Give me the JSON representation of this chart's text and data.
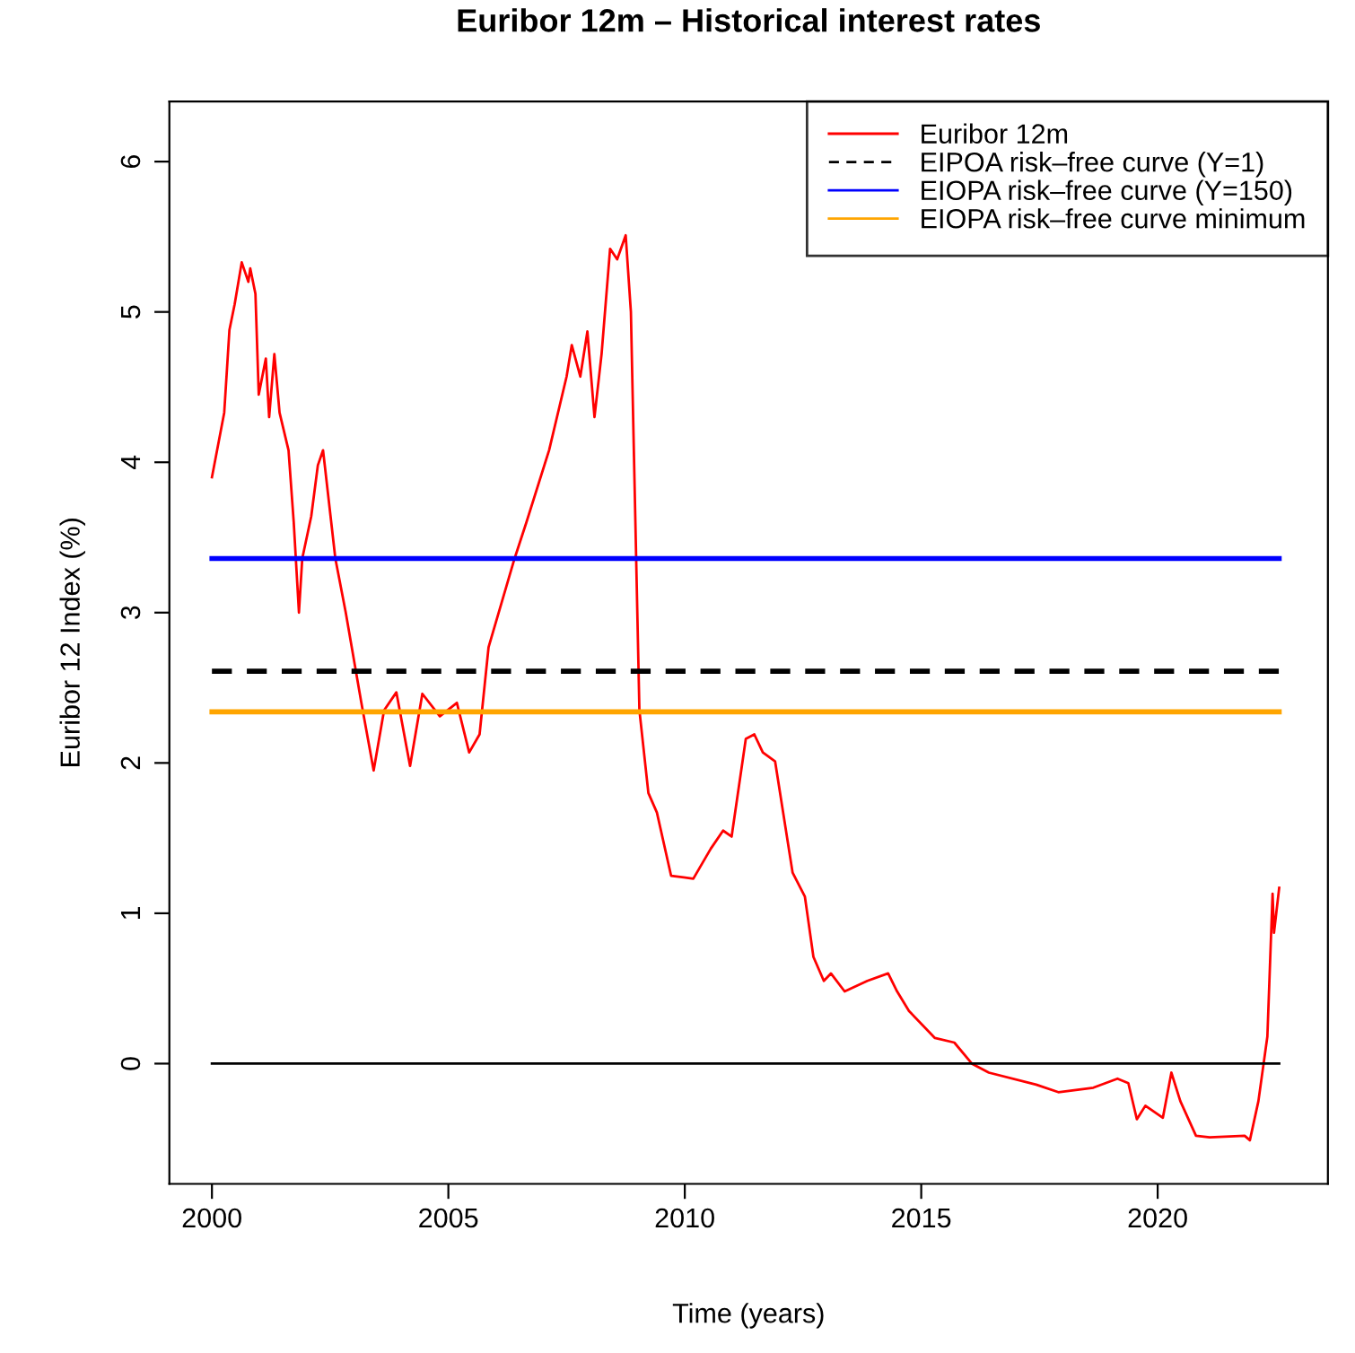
{
  "chart_data": {
    "type": "line",
    "title": "Euribor 12m – Historical interest rates",
    "xlabel": "Time (years)",
    "ylabel": "Euribor 12 Index (%)",
    "xlim": [
      1999.1,
      2023.6
    ],
    "xticks": [
      2000,
      2005,
      2010,
      2015,
      2020
    ],
    "ylim": [
      -0.8,
      6.4
    ],
    "yticks": [
      0,
      1,
      2,
      3,
      4,
      5,
      6
    ],
    "grid": false,
    "legend": "top right",
    "series": [
      {
        "name": "Euribor 12m",
        "color": "#ff0000",
        "line_style": "solid",
        "x": [
          2000.0,
          2000.26,
          2000.37,
          2000.48,
          2000.63,
          2000.77,
          2000.81,
          2000.92,
          2000.99,
          2001.14,
          2001.21,
          2001.32,
          2001.43,
          2001.62,
          2001.73,
          2001.84,
          2001.91,
          2002.1,
          2002.24,
          2002.35,
          2002.61,
          2002.83,
          2003.16,
          2003.42,
          2003.64,
          2003.9,
          2004.19,
          2004.45,
          2004.82,
          2005.18,
          2005.44,
          2005.66,
          2005.85,
          2006.4,
          2006.65,
          2007.13,
          2007.5,
          2007.61,
          2007.79,
          2007.94,
          2008.09,
          2008.24,
          2008.42,
          2008.57,
          2008.75,
          2008.86,
          2009.04,
          2009.23,
          2009.41,
          2009.71,
          2010.18,
          2010.55,
          2010.81,
          2010.99,
          2011.29,
          2011.47,
          2011.65,
          2011.91,
          2012.28,
          2012.54,
          2012.72,
          2012.94,
          2013.09,
          2013.38,
          2013.86,
          2014.3,
          2014.49,
          2014.74,
          2015.29,
          2015.7,
          2016.07,
          2016.43,
          2017.43,
          2017.9,
          2018.64,
          2019.15,
          2019.38,
          2019.56,
          2019.74,
          2020.11,
          2020.29,
          2020.48,
          2020.81,
          2021.1,
          2021.84,
          2021.95,
          2022.13,
          2022.32,
          2022.43,
          2022.46,
          2022.57
        ],
        "values": [
          3.9,
          4.33,
          4.88,
          5.05,
          5.33,
          5.2,
          5.29,
          5.12,
          4.45,
          4.69,
          4.3,
          4.72,
          4.33,
          4.08,
          3.6,
          3.0,
          3.36,
          3.64,
          3.98,
          4.08,
          3.36,
          3.0,
          2.4,
          1.95,
          2.35,
          2.47,
          1.98,
          2.46,
          2.31,
          2.4,
          2.07,
          2.19,
          2.77,
          3.36,
          3.6,
          4.08,
          4.57,
          4.78,
          4.57,
          4.87,
          4.3,
          4.72,
          5.42,
          5.35,
          5.51,
          5.0,
          2.35,
          1.8,
          1.67,
          1.25,
          1.23,
          1.43,
          1.55,
          1.51,
          2.16,
          2.19,
          2.07,
          2.01,
          1.27,
          1.11,
          0.71,
          0.55,
          0.6,
          0.48,
          0.55,
          0.6,
          0.48,
          0.35,
          0.17,
          0.14,
          0.0,
          -0.06,
          -0.14,
          -0.19,
          -0.16,
          -0.1,
          -0.13,
          -0.37,
          -0.28,
          -0.36,
          -0.06,
          -0.25,
          -0.48,
          -0.49,
          -0.48,
          -0.51,
          -0.25,
          0.18,
          1.13,
          0.87,
          1.17
        ]
      },
      {
        "name": "EIPOA risk–free curve (Y=1)",
        "color": "#000000",
        "line_style": "dashed",
        "x": [
          2000.0,
          2022.57
        ],
        "values": [
          2.61,
          2.61
        ]
      },
      {
        "name": "EIOPA risk–free curve (Y=150)",
        "color": "#0000ff",
        "line_style": "solid",
        "x": [
          2000.0,
          2022.57
        ],
        "values": [
          3.36,
          3.36
        ]
      },
      {
        "name": "EIOPA risk–free curve minimum",
        "color": "#ffa500",
        "line_style": "solid",
        "x": [
          2000.0,
          2022.57
        ],
        "values": [
          2.34,
          2.34
        ]
      },
      {
        "color": "#000000",
        "line_style": "solid",
        "x": [
          2000.0,
          2022.57
        ],
        "values": [
          0.0,
          0.0
        ]
      }
    ]
  }
}
